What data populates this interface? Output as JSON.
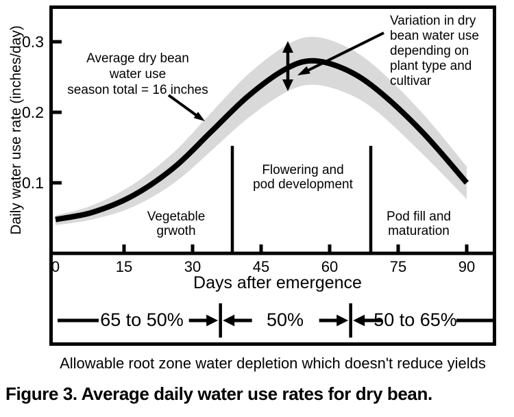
{
  "figure": {
    "caption": "Figure 3. Average daily water use rates for dry bean."
  },
  "chart_data": {
    "type": "line",
    "title": "Figure 3. Average daily water use rates for dry bean.",
    "xlabel": "Days after emergence",
    "ylabel": "Daily water use rate (inches/day)",
    "x_ticks": [
      0,
      15,
      30,
      45,
      60,
      75,
      90
    ],
    "y_tick_labels": [
      "0.1",
      "0.2",
      "0.3"
    ],
    "y_tick_values": [
      0.1,
      0.2,
      0.3
    ],
    "xlim": [
      0,
      96
    ],
    "ylim": [
      0,
      0.35
    ],
    "grid": false,
    "legend": "none",
    "series": [
      {
        "name": "Average dry bean water use",
        "x": [
          0,
          8,
          17,
          26,
          34,
          42,
          50,
          56,
          63,
          70,
          80,
          90
        ],
        "y": [
          0.048,
          0.058,
          0.082,
          0.122,
          0.172,
          0.222,
          0.26,
          0.273,
          0.262,
          0.234,
          0.174,
          0.1
        ]
      }
    ],
    "band": {
      "name": "Variation in dry bean water use depending on plant type and cultivar",
      "x": [
        0,
        8,
        17,
        26,
        34,
        42,
        50,
        56,
        63,
        70,
        80,
        90
      ],
      "upper": [
        0.054,
        0.068,
        0.098,
        0.144,
        0.199,
        0.253,
        0.293,
        0.307,
        0.295,
        0.265,
        0.201,
        0.123
      ],
      "lower": [
        0.04,
        0.048,
        0.066,
        0.1,
        0.145,
        0.191,
        0.227,
        0.239,
        0.229,
        0.203,
        0.143,
        0.077
      ]
    },
    "annotations": [
      {
        "text": "Average dry bean\nwater use\nseason total = 16 inches"
      },
      {
        "text": "Variation in dry\nbean water use\ndepending on\nplant type and\ncultivar"
      }
    ],
    "stages": {
      "divider_days": [
        38.7,
        69
      ],
      "labels": [
        {
          "label": "Vegetable\ngrwoth"
        },
        {
          "label": "Flowering and\npod development"
        },
        {
          "label": "Pod fill and\nmaturation"
        }
      ]
    },
    "depletion_band": {
      "divider_days": [
        36.1,
        64.6
      ],
      "segments": [
        "65 to 50%",
        "50%",
        "50 to 65%"
      ],
      "note": "Allowable root zone water depletion which doesn't reduce yields"
    },
    "colors": {
      "curve": "#000000",
      "band": "#d9d9d9",
      "background": "#ffffff",
      "text": "#000000"
    }
  }
}
